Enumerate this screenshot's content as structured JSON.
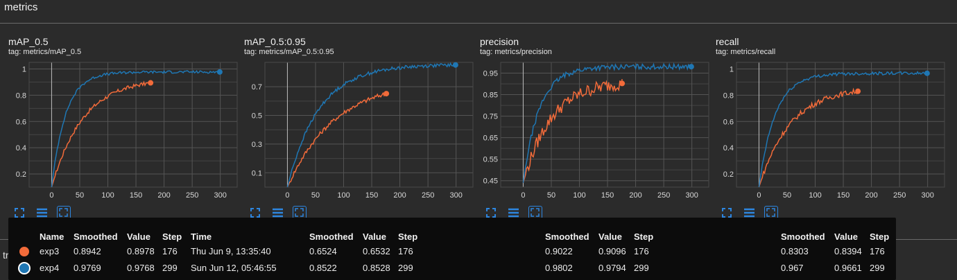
{
  "section": {
    "title": "metrics",
    "behind_label": "train"
  },
  "colors": {
    "exp3": "#f26b3a",
    "exp4": "#1f77b4",
    "background": "#2b2b2b",
    "grid": "#555555"
  },
  "icons": {
    "expand": "expand-icon",
    "lines": "lines-icon",
    "fit": "fit-domain-icon"
  },
  "charts": [
    {
      "title": "mAP_0.5",
      "tag": "tag: metrics/mAP_0.5",
      "ylim": [
        0.1,
        1.05
      ],
      "yticks": [
        0.2,
        0.4,
        0.6,
        0.8,
        1
      ],
      "ytick_labels": [
        "0.2",
        "0.4",
        "0.6",
        "0.8",
        "1"
      ],
      "xlim": [
        -40,
        330
      ],
      "xticks": [
        0,
        50,
        100,
        150,
        200,
        250,
        300
      ],
      "exp3": {
        "end_step": 176,
        "end_value": 0.894,
        "k": 0.018,
        "noise": 0.015
      },
      "exp4": {
        "end_step": 299,
        "end_value": 0.977,
        "k": 0.04,
        "noise": 0.01
      }
    },
    {
      "title": "mAP_0.5:0.95",
      "tag": "tag: metrics/mAP_0.5:0.95",
      "ylim": [
        0,
        0.87
      ],
      "yticks": [
        0.1,
        0.3,
        0.5,
        0.7
      ],
      "ytick_labels": [
        "0.1",
        "0.3",
        "0.5",
        "0.7"
      ],
      "xlim": [
        -40,
        330
      ],
      "xticks": [
        0,
        50,
        100,
        150,
        200,
        250,
        300
      ],
      "exp3": {
        "end_step": 176,
        "end_value": 0.652,
        "k": 0.012,
        "noise": 0.015
      },
      "exp4": {
        "end_step": 299,
        "end_value": 0.852,
        "k": 0.018,
        "noise": 0.012
      }
    },
    {
      "title": "precision",
      "tag": "tag: metrics/precision",
      "ylim": [
        0.42,
        1.0
      ],
      "yticks": [
        0.45,
        0.55,
        0.65,
        0.75,
        0.85,
        0.95
      ],
      "ytick_labels": [
        "0.45",
        "0.55",
        "0.65",
        "0.75",
        "0.85",
        "0.95"
      ],
      "xlim": [
        -40,
        330
      ],
      "xticks": [
        0,
        50,
        100,
        150,
        200,
        250,
        300
      ],
      "exp3": {
        "end_step": 176,
        "end_value": 0.902,
        "k": 0.02,
        "noise": 0.03
      },
      "exp4": {
        "end_step": 299,
        "end_value": 0.98,
        "k": 0.035,
        "noise": 0.012
      }
    },
    {
      "title": "recall",
      "tag": "tag: metrics/recall",
      "ylim": [
        0.1,
        1.05
      ],
      "yticks": [
        0.2,
        0.4,
        0.6,
        0.8,
        1
      ],
      "ytick_labels": [
        "0.2",
        "0.4",
        "0.6",
        "0.8",
        "1"
      ],
      "xlim": [
        -40,
        330
      ],
      "xticks": [
        0,
        50,
        100,
        150,
        200,
        250,
        300
      ],
      "exp3": {
        "end_step": 176,
        "end_value": 0.83,
        "k": 0.018,
        "noise": 0.02
      },
      "exp4": {
        "end_step": 299,
        "end_value": 0.967,
        "k": 0.035,
        "noise": 0.012
      }
    }
  ],
  "tooltip": {
    "headers": {
      "name": "Name",
      "smoothed": "Smoothed",
      "value": "Value",
      "step": "Step",
      "time": "Time"
    },
    "rows": [
      {
        "name": "exp3",
        "time": "Thu Jun 9, 13:35:40",
        "groups": [
          {
            "smoothed": "0.8942",
            "value": "0.8978",
            "step": "176"
          },
          {
            "smoothed": "0.6524",
            "value": "0.6532",
            "step": "176"
          },
          {
            "smoothed": "0.9022",
            "value": "0.9096",
            "step": "176"
          },
          {
            "smoothed": "0.8303",
            "value": "0.8394",
            "step": "176"
          }
        ]
      },
      {
        "name": "exp4",
        "time": "Sun Jun 12, 05:46:55",
        "groups": [
          {
            "smoothed": "0.9769",
            "value": "0.9768",
            "step": "299"
          },
          {
            "smoothed": "0.8522",
            "value": "0.8528",
            "step": "299"
          },
          {
            "smoothed": "0.9802",
            "value": "0.9794",
            "step": "299"
          },
          {
            "smoothed": "0.967",
            "value": "0.9661",
            "step": "299"
          }
        ]
      }
    ]
  },
  "chart_data": [
    {
      "type": "line",
      "title": "mAP_0.5",
      "xlabel": "",
      "ylabel": "",
      "series": [
        {
          "name": "exp3",
          "x": [
            0,
            176
          ],
          "y": [
            0,
            0.8942
          ]
        },
        {
          "name": "exp4",
          "x": [
            0,
            299
          ],
          "y": [
            0,
            0.9769
          ]
        }
      ]
    },
    {
      "type": "line",
      "title": "mAP_0.5:0.95",
      "xlabel": "",
      "ylabel": "",
      "series": [
        {
          "name": "exp3",
          "x": [
            0,
            176
          ],
          "y": [
            0,
            0.6524
          ]
        },
        {
          "name": "exp4",
          "x": [
            0,
            299
          ],
          "y": [
            0,
            0.8522
          ]
        }
      ]
    },
    {
      "type": "line",
      "title": "precision",
      "xlabel": "",
      "ylabel": "",
      "series": [
        {
          "name": "exp3",
          "x": [
            0,
            176
          ],
          "y": [
            0.45,
            0.9022
          ]
        },
        {
          "name": "exp4",
          "x": [
            0,
            299
          ],
          "y": [
            0.45,
            0.9802
          ]
        }
      ]
    },
    {
      "type": "line",
      "title": "recall",
      "xlabel": "",
      "ylabel": "",
      "series": [
        {
          "name": "exp3",
          "x": [
            0,
            176
          ],
          "y": [
            0,
            0.8303
          ]
        },
        {
          "name": "exp4",
          "x": [
            0,
            299
          ],
          "y": [
            0,
            0.967
          ]
        }
      ]
    }
  ]
}
